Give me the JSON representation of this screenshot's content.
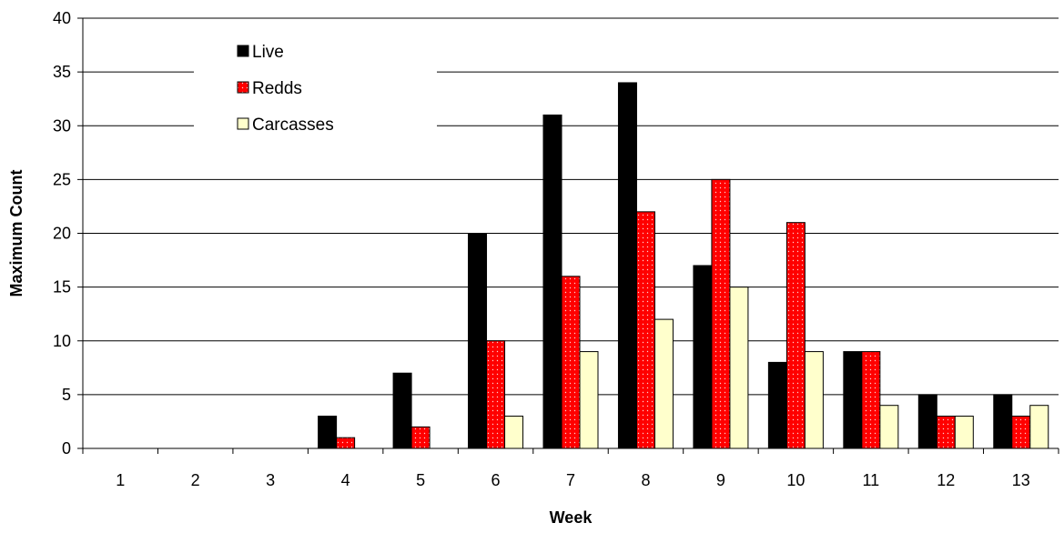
{
  "chart_data": {
    "type": "bar",
    "title": "",
    "xlabel": "Week",
    "ylabel": "Maximum Count",
    "categories": [
      "1",
      "2",
      "3",
      "4",
      "5",
      "6",
      "7",
      "8",
      "9",
      "10",
      "11",
      "12",
      "13"
    ],
    "ylim": [
      0,
      40
    ],
    "yticks": [
      "0",
      "5",
      "10",
      "15",
      "20",
      "25",
      "30",
      "35",
      "40"
    ],
    "grid": "horizontal",
    "legend_position": "top-left",
    "series": [
      {
        "name": "Live",
        "values": [
          0,
          0,
          0,
          3,
          7,
          20,
          31,
          34,
          17,
          8,
          9,
          5,
          5
        ],
        "color": "#000000",
        "pattern": "solid"
      },
      {
        "name": "Redds",
        "values": [
          0,
          0,
          0,
          1,
          2,
          10,
          16,
          22,
          25,
          21,
          9,
          3,
          3
        ],
        "color": "#ff0000",
        "pattern": "dotted"
      },
      {
        "name": "Carcasses",
        "values": [
          0,
          0,
          0,
          0,
          0,
          3,
          9,
          12,
          15,
          9,
          4,
          3,
          4
        ],
        "color": "#ffffcc",
        "pattern": "solid"
      }
    ]
  }
}
